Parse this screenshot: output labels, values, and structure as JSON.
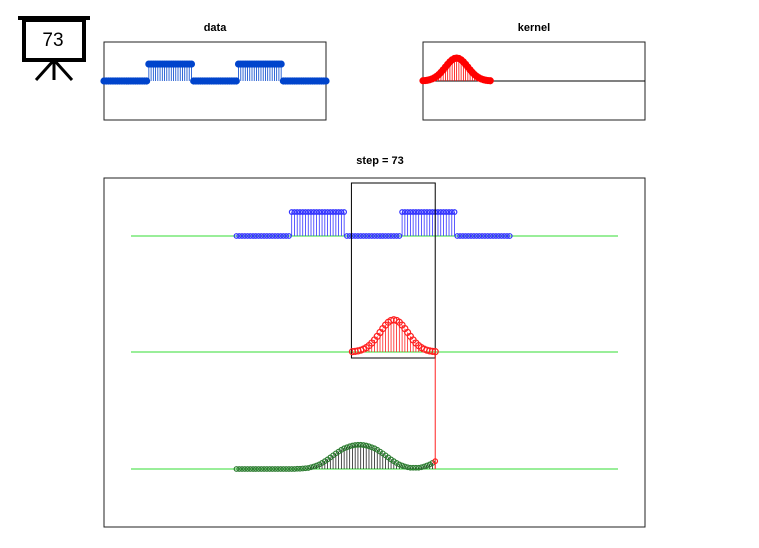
{
  "slide_number": "73",
  "chart_data": [
    {
      "type": "stem",
      "title": "data",
      "color": "#0044cc",
      "xlim": [
        1,
        100
      ],
      "ylim": [
        -2.3,
        2.3
      ],
      "values": [
        0,
        0,
        0,
        0,
        0,
        0,
        0,
        0,
        0,
        0,
        0,
        0,
        0,
        0,
        0,
        0,
        0,
        0,
        0,
        0,
        1,
        1,
        1,
        1,
        1,
        1,
        1,
        1,
        1,
        1,
        1,
        1,
        1,
        1,
        1,
        1,
        1,
        1,
        1,
        1,
        0,
        0,
        0,
        0,
        0,
        0,
        0,
        0,
        0,
        0,
        0,
        0,
        0,
        0,
        0,
        0,
        0,
        0,
        0,
        0,
        1,
        1,
        1,
        1,
        1,
        1,
        1,
        1,
        1,
        1,
        1,
        1,
        1,
        1,
        1,
        1,
        1,
        1,
        1,
        1,
        0,
        0,
        0,
        0,
        0,
        0,
        0,
        0,
        0,
        0,
        0,
        0,
        0,
        0,
        0,
        0,
        0,
        0,
        0,
        0
      ]
    },
    {
      "type": "stem",
      "title": "kernel",
      "color": "#ff0000",
      "xlim": [
        1,
        100
      ],
      "ylim": [
        -1.7,
        1.7
      ],
      "values": [
        0.011,
        0.02,
        0.034,
        0.056,
        0.089,
        0.135,
        0.198,
        0.278,
        0.375,
        0.487,
        0.607,
        0.726,
        0.835,
        0.923,
        0.98,
        1,
        0.98,
        0.923,
        0.835,
        0.726,
        0.607,
        0.487,
        0.375,
        0.278,
        0.198,
        0.135,
        0.089,
        0.056,
        0.034,
        0.02,
        0.011
      ]
    },
    {
      "type": "convolution",
      "title": "step = 73",
      "step": 73,
      "xlim": [
        -47,
        149
      ],
      "data_color": "#3333ff",
      "kernel_color": "#ff2020",
      "output_color": "#222222",
      "baseline_color": "#33dd33",
      "data_ylim": [
        -2.42,
        2.42
      ],
      "kernel_ylim": [
        -1.8,
        1.8
      ],
      "output_ylim": [
        -2.3,
        2.3
      ],
      "output_values": [
        0,
        0,
        0,
        0,
        0,
        0,
        0,
        0,
        0,
        0,
        0,
        0,
        0,
        0,
        0,
        0,
        0,
        0,
        0,
        0,
        0,
        0,
        0.01,
        0.01,
        0.02,
        0.03,
        0.04,
        0.07,
        0.1,
        0.14,
        0.18,
        0.24,
        0.31,
        0.38,
        0.46,
        0.54,
        0.62,
        0.69,
        0.76,
        0.82,
        0.86,
        0.9,
        0.93,
        0.95,
        0.96,
        0.96,
        0.95,
        0.93,
        0.9,
        0.86,
        0.82,
        0.76,
        0.69,
        0.62,
        0.54,
        0.46,
        0.38,
        0.31,
        0.24,
        0.18,
        0.14,
        0.1,
        0.07,
        0.05,
        0.05,
        0.05,
        0.05,
        0.07,
        0.1,
        0.14,
        0.18,
        0.24,
        0.31
      ]
    }
  ]
}
